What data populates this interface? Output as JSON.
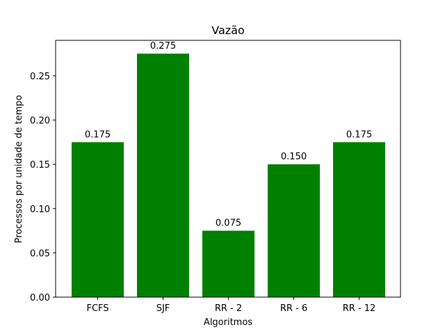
{
  "chart_data": {
    "type": "bar",
    "title": "Vazão",
    "xlabel": "Algoritmos",
    "ylabel": "Processos por unidade de tempo",
    "categories": [
      "FCFS",
      "SJF",
      "RR - 2",
      "RR - 6",
      "RR - 12"
    ],
    "values": [
      0.175,
      0.275,
      0.075,
      0.15,
      0.175
    ],
    "value_labels": [
      "0.175",
      "0.275",
      "0.075",
      "0.150",
      "0.175"
    ],
    "ylim": [
      0,
      0.29
    ],
    "yticks": [
      0.0,
      0.05,
      0.1,
      0.15,
      0.2,
      0.25
    ],
    "ytick_labels": [
      "0.00",
      "0.05",
      "0.10",
      "0.15",
      "0.20",
      "0.25"
    ],
    "bar_color": "#008000",
    "grid": false,
    "legend": null
  }
}
